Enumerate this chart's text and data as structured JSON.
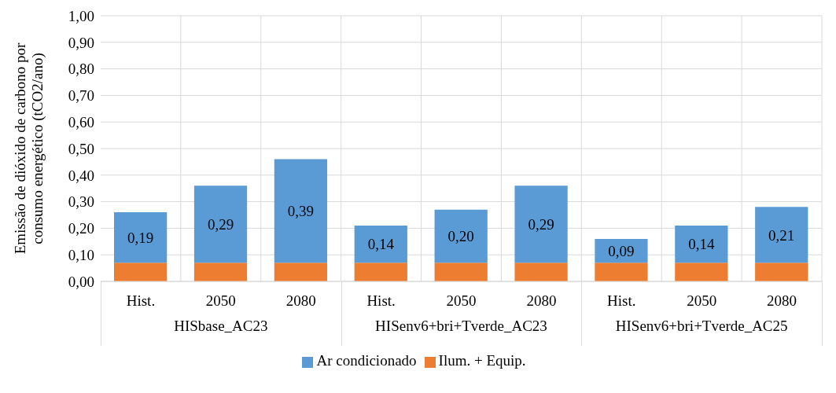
{
  "chart_data": {
    "type": "bar",
    "stacked": true,
    "ylabel": "Emissão de dióxido de carbono por consumo energético (tCO2/ano)",
    "categories": [
      "Hist.",
      "2050",
      "2080",
      "Hist.",
      "2050",
      "2080",
      "Hist.",
      "2050",
      "2080"
    ],
    "annotations": [
      "HISbase_AC23",
      "HISenv6+bri+Tverde_AC23",
      "HISenv6+bri+Tverde_AC25"
    ],
    "series": [
      {
        "name": "Ilum. + Equip.",
        "color": "#ed7d31",
        "values": [
          0.07,
          0.07,
          0.07,
          0.07,
          0.07,
          0.07,
          0.07,
          0.07,
          0.07
        ]
      },
      {
        "name": "Ar condicionado",
        "color": "#5b9bd5",
        "values": [
          0.19,
          0.29,
          0.39,
          0.14,
          0.2,
          0.29,
          0.09,
          0.14,
          0.21
        ],
        "value_labels": [
          "0,19",
          "0,29",
          "0,39",
          "0,14",
          "0,20",
          "0,29",
          "0,09",
          "0,14",
          "0,21"
        ]
      }
    ],
    "ylim": [
      0,
      1
    ],
    "yticks": [
      {
        "value": 0,
        "label": "0,00"
      },
      {
        "value": 0.1,
        "label": "0,10"
      },
      {
        "value": 0.2,
        "label": "0,20"
      },
      {
        "value": 0.3,
        "label": "0,30"
      },
      {
        "value": 0.4,
        "label": "0,40"
      },
      {
        "value": 0.5,
        "label": "0,50"
      },
      {
        "value": 0.6,
        "label": "0,60"
      },
      {
        "value": 0.7,
        "label": "0,70"
      },
      {
        "value": 0.8,
        "label": "0,80"
      },
      {
        "value": 0.9,
        "label": "0,90"
      },
      {
        "value": 1,
        "label": "1,00"
      }
    ],
    "grid": true,
    "legend": "bottom"
  }
}
